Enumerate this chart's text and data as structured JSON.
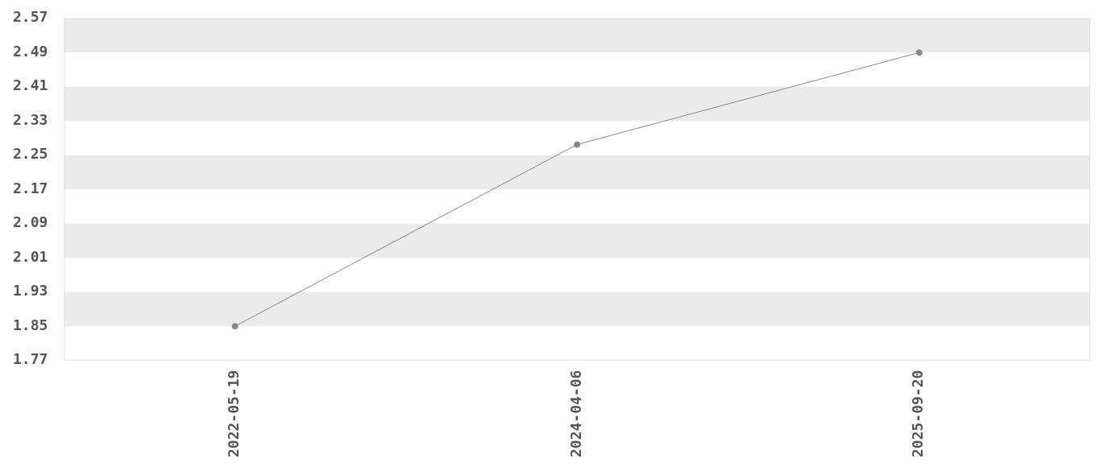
{
  "chart_data": {
    "type": "line",
    "categories": [
      "2022-05-19",
      "2024-04-06",
      "2025-09-20"
    ],
    "series": [
      {
        "color": "#888888",
        "values": [
          1.85,
          2.275,
          2.49
        ]
      }
    ],
    "ylim": [
      1.77,
      2.57
    ],
    "yticks": [
      1.77,
      1.85,
      1.93,
      2.01,
      2.09,
      2.17,
      2.25,
      2.33,
      2.41,
      2.49,
      2.57
    ],
    "marker": "circle",
    "line_style": "solid",
    "legend": false
  }
}
